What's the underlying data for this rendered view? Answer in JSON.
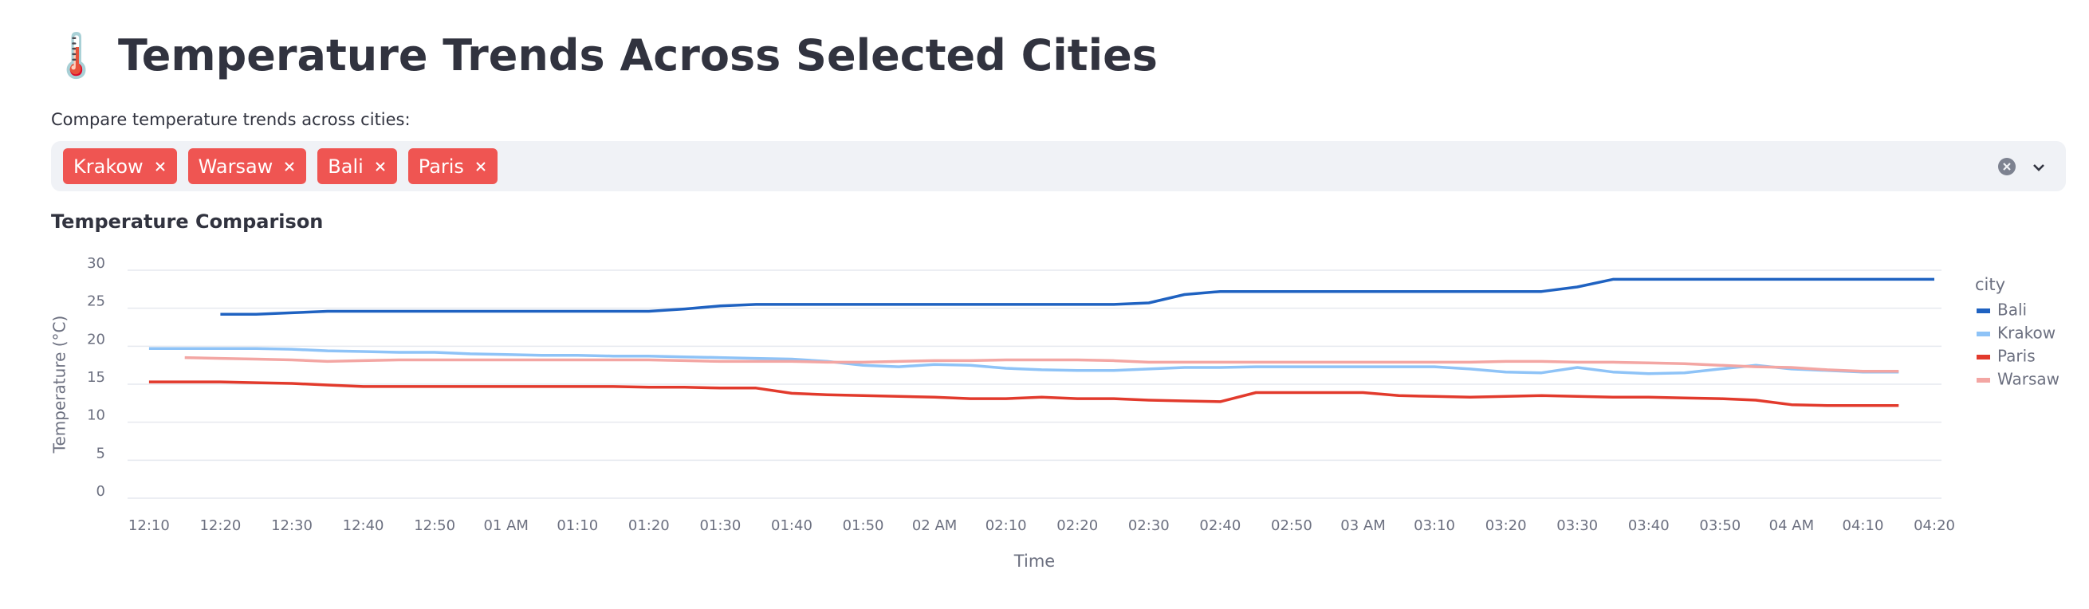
{
  "header": {
    "title": "🌡️ Temperature Trends Across Selected Cities"
  },
  "multiselect": {
    "label": "Compare temperature trends across cities:",
    "selected": [
      "Krakow",
      "Warsaw",
      "Bali",
      "Paris"
    ]
  },
  "chart_data": {
    "type": "line",
    "title": "Temperature Comparison",
    "x_label": "Time",
    "y_label": "Temperature (°C)",
    "legend_title": "city",
    "legend": "right",
    "grid": true,
    "x": [
      10,
      15,
      20,
      25,
      30,
      35,
      40,
      45,
      50,
      55,
      60,
      65,
      70,
      75,
      80,
      85,
      90,
      95,
      100,
      105,
      110,
      115,
      120,
      125,
      130,
      135,
      140,
      145,
      150,
      155,
      160,
      165,
      170,
      175,
      180,
      185,
      190,
      195,
      200,
      205,
      210,
      215,
      220,
      225,
      230,
      235,
      240,
      245,
      250,
      255,
      260
    ],
    "xlim": [
      7,
      261
    ],
    "xticks": [
      {
        "value": 10,
        "label": "12:10"
      },
      {
        "value": 20,
        "label": "12:20"
      },
      {
        "value": 30,
        "label": "12:30"
      },
      {
        "value": 40,
        "label": "12:40"
      },
      {
        "value": 50,
        "label": "12:50"
      },
      {
        "value": 60,
        "label": "01 AM"
      },
      {
        "value": 70,
        "label": "01:10"
      },
      {
        "value": 80,
        "label": "01:20"
      },
      {
        "value": 90,
        "label": "01:30"
      },
      {
        "value": 100,
        "label": "01:40"
      },
      {
        "value": 110,
        "label": "01:50"
      },
      {
        "value": 120,
        "label": "02 AM"
      },
      {
        "value": 130,
        "label": "02:10"
      },
      {
        "value": 140,
        "label": "02:20"
      },
      {
        "value": 150,
        "label": "02:30"
      },
      {
        "value": 160,
        "label": "02:40"
      },
      {
        "value": 170,
        "label": "02:50"
      },
      {
        "value": 180,
        "label": "03 AM"
      },
      {
        "value": 190,
        "label": "03:10"
      },
      {
        "value": 200,
        "label": "03:20"
      },
      {
        "value": 210,
        "label": "03:30"
      },
      {
        "value": 220,
        "label": "03:40"
      },
      {
        "value": 230,
        "label": "03:50"
      },
      {
        "value": 240,
        "label": "04 AM"
      },
      {
        "value": 250,
        "label": "04:10"
      },
      {
        "value": 260,
        "label": "04:20"
      }
    ],
    "ylim": [
      0,
      30
    ],
    "yticks": [
      0,
      5,
      10,
      15,
      20,
      25,
      30
    ],
    "series": [
      {
        "name": "Bali",
        "color": "#1f62c1",
        "values": [
          null,
          null,
          24.2,
          24.2,
          24.4,
          24.6,
          24.6,
          24.6,
          24.6,
          24.6,
          24.6,
          24.6,
          24.6,
          24.6,
          24.6,
          24.9,
          25.3,
          25.5,
          25.5,
          25.5,
          25.5,
          25.5,
          25.5,
          25.5,
          25.5,
          25.5,
          25.5,
          25.5,
          25.7,
          26.8,
          27.2,
          27.2,
          27.2,
          27.2,
          27.2,
          27.2,
          27.2,
          27.2,
          27.2,
          27.2,
          27.8,
          28.8,
          28.8,
          28.8,
          28.8,
          28.8,
          28.8,
          28.8,
          28.8,
          28.8,
          28.8
        ]
      },
      {
        "name": "Krakow",
        "color": "#8ec3f7",
        "values": [
          19.7,
          19.7,
          19.7,
          19.7,
          19.6,
          19.4,
          19.3,
          19.2,
          19.2,
          19.0,
          18.9,
          18.8,
          18.8,
          18.7,
          18.7,
          18.6,
          18.5,
          18.4,
          18.3,
          18.0,
          17.5,
          17.3,
          17.6,
          17.5,
          17.1,
          16.9,
          16.8,
          16.8,
          17.0,
          17.2,
          17.2,
          17.3,
          17.3,
          17.3,
          17.3,
          17.3,
          17.3,
          17.0,
          16.6,
          16.5,
          17.2,
          16.6,
          16.4,
          16.5,
          17.0,
          17.5,
          17.0,
          16.8,
          16.6,
          16.6,
          null
        ]
      },
      {
        "name": "Paris",
        "color": "#e23a2c",
        "values": [
          15.3,
          15.3,
          15.3,
          15.2,
          15.1,
          14.9,
          14.7,
          14.7,
          14.7,
          14.7,
          14.7,
          14.7,
          14.7,
          14.7,
          14.6,
          14.6,
          14.5,
          14.5,
          13.8,
          13.6,
          13.5,
          13.4,
          13.3,
          13.1,
          13.1,
          13.3,
          13.1,
          13.1,
          12.9,
          12.8,
          12.7,
          13.9,
          13.9,
          13.9,
          13.9,
          13.5,
          13.4,
          13.3,
          13.4,
          13.5,
          13.4,
          13.3,
          13.3,
          13.2,
          13.1,
          12.9,
          12.3,
          12.2,
          12.2,
          12.2,
          null
        ]
      },
      {
        "name": "Warsaw",
        "color": "#f3a6a3",
        "values": [
          null,
          18.5,
          18.4,
          18.3,
          18.2,
          18.0,
          18.1,
          18.2,
          18.2,
          18.2,
          18.2,
          18.2,
          18.2,
          18.2,
          18.2,
          18.1,
          18.0,
          18.0,
          18.0,
          17.9,
          17.9,
          18.0,
          18.1,
          18.1,
          18.2,
          18.2,
          18.2,
          18.1,
          17.9,
          17.9,
          17.9,
          17.9,
          17.9,
          17.9,
          17.9,
          17.9,
          17.9,
          17.9,
          18.0,
          18.0,
          17.9,
          17.9,
          17.8,
          17.7,
          17.5,
          17.3,
          17.2,
          16.9,
          16.7,
          16.7,
          null
        ]
      }
    ]
  }
}
